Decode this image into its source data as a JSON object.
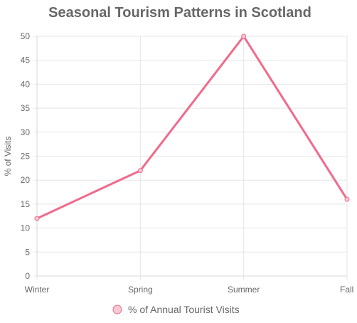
{
  "chart_data": {
    "type": "line",
    "title": "Seasonal Tourism Patterns in Scotland",
    "xlabel": "",
    "ylabel": "% of Visits",
    "categories": [
      "Winter",
      "Spring",
      "Summer",
      "Fall"
    ],
    "series": [
      {
        "name": "% of Annual Tourist Visits",
        "values": [
          12,
          22,
          50,
          16
        ]
      }
    ],
    "ylim": [
      0,
      50
    ],
    "yticks": [
      "0",
      "5",
      "10",
      "15",
      "20",
      "25",
      "30",
      "35",
      "40",
      "45",
      "50"
    ],
    "grid": true,
    "legend_position": "bottom"
  },
  "colors": {
    "line": "#f06a8c",
    "point_fill": "#f7c9d5"
  }
}
